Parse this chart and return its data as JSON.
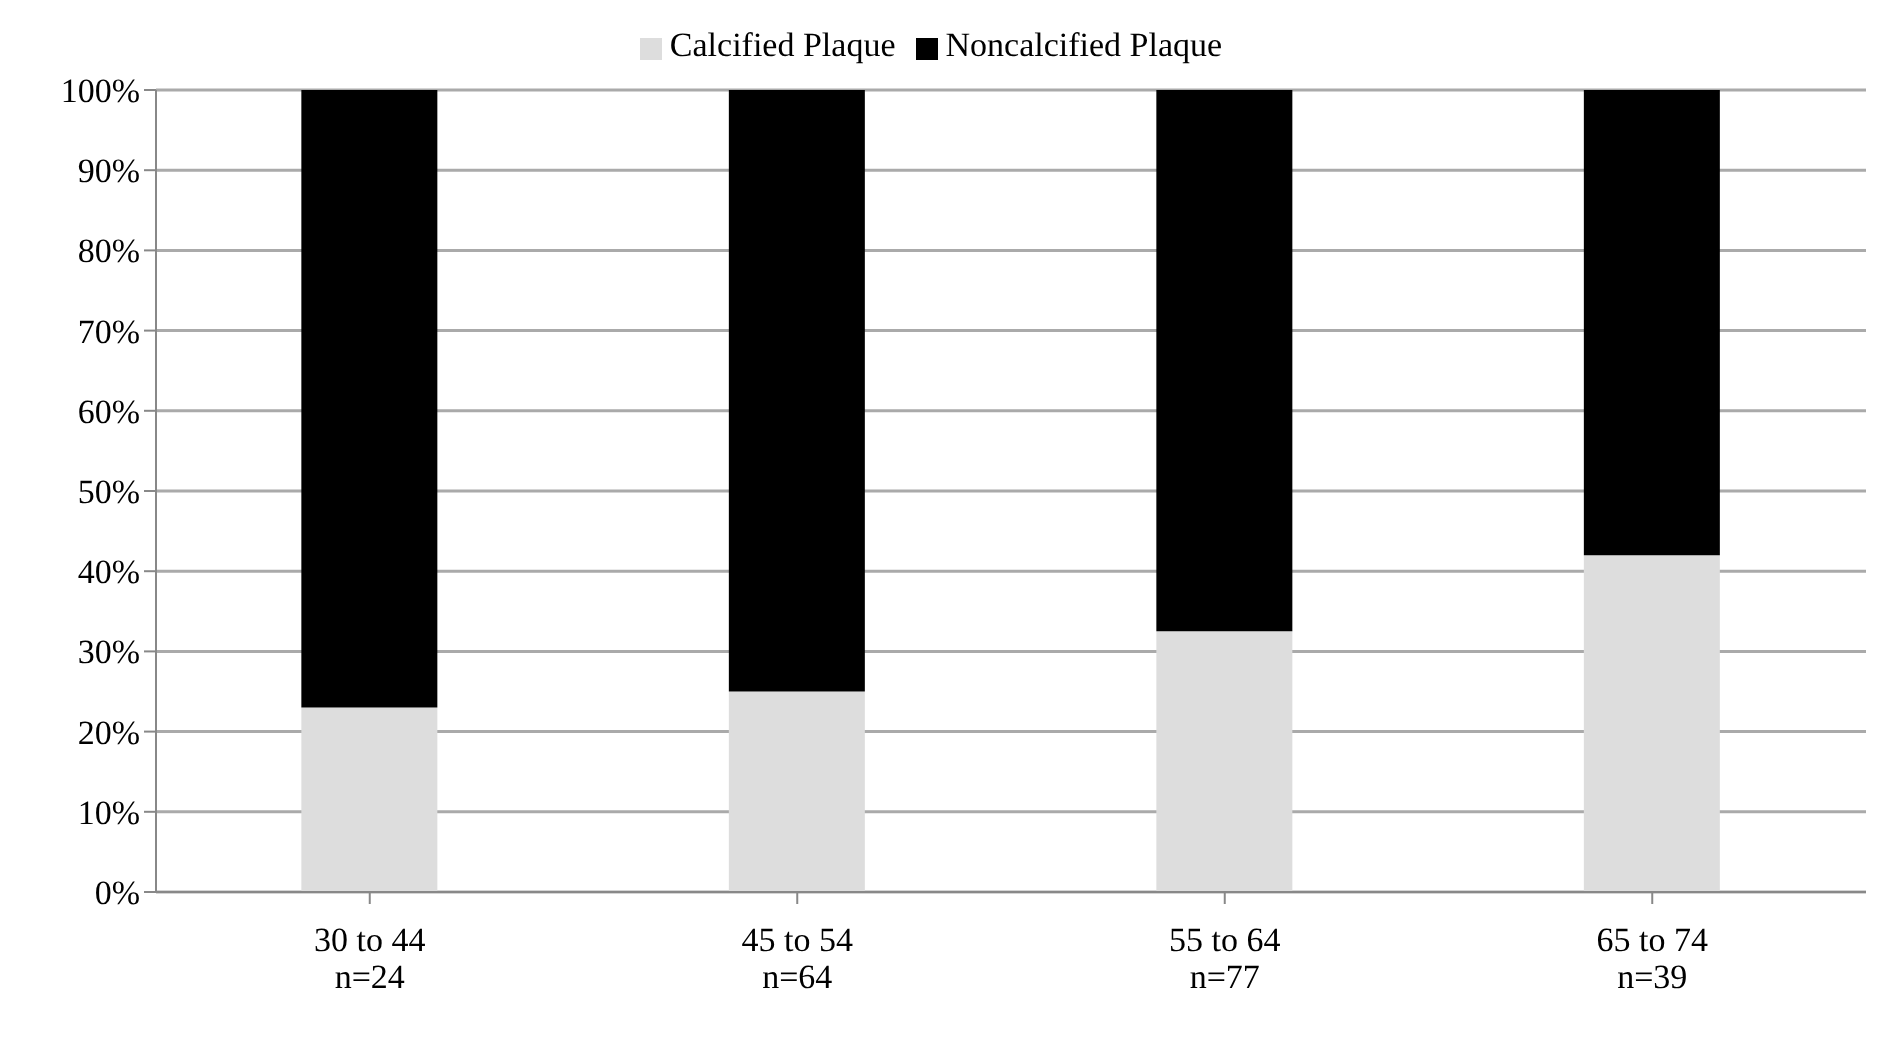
{
  "chart_data": {
    "type": "bar",
    "stacked": true,
    "categories": [
      "30 to 44\nn=24",
      "45 to 54\nn=64",
      "55 to 64\nn=77",
      "65 to 74\nn=39"
    ],
    "series": [
      {
        "name": "Calcified Plaque",
        "color": "#dddddd",
        "values": [
          23,
          25,
          32.5,
          42
        ]
      },
      {
        "name": "Noncalcified Plaque",
        "color": "#000000",
        "values": [
          77,
          75,
          67.5,
          58
        ]
      }
    ],
    "ylim": [
      0,
      100
    ],
    "yticks": [
      {
        "value": 0,
        "label": "0%"
      },
      {
        "value": 10,
        "label": "10%"
      },
      {
        "value": 20,
        "label": "20%"
      },
      {
        "value": 30,
        "label": "30%"
      },
      {
        "value": 40,
        "label": "40%"
      },
      {
        "value": 50,
        "label": "50%"
      },
      {
        "value": 60,
        "label": "60%"
      },
      {
        "value": 70,
        "label": "70%"
      },
      {
        "value": 80,
        "label": "80%"
      },
      {
        "value": 90,
        "label": "90%"
      },
      {
        "value": 100,
        "label": "100%"
      }
    ],
    "grid": "y",
    "legend": "top"
  }
}
